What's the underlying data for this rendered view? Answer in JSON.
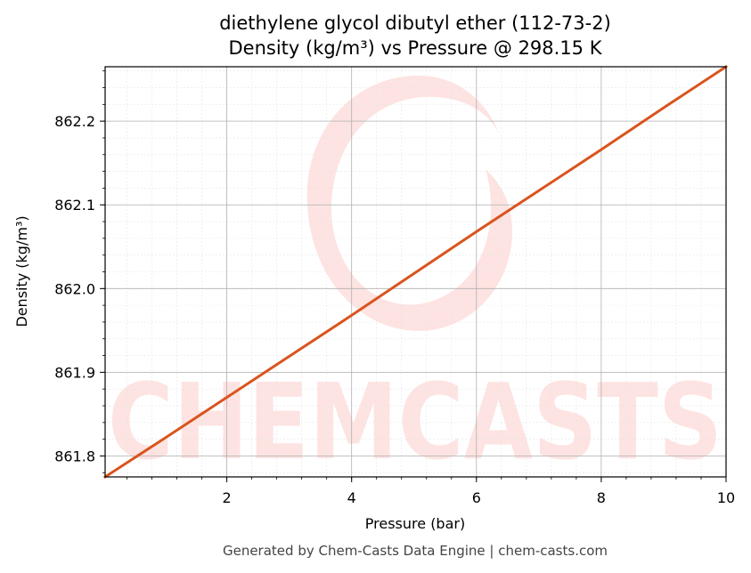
{
  "chart_data": {
    "type": "line",
    "title_line1": "diethylene glycol dibutyl ether (112-73-2)",
    "title_line2": "Density (kg/m³) vs Pressure @ 298.15 K",
    "xlabel": "Pressure (bar)",
    "ylabel": "Density (kg/m³)",
    "xlim": [
      0.05,
      10
    ],
    "ylim": [
      861.775,
      862.265
    ],
    "x_ticks": [
      2,
      4,
      6,
      8,
      10
    ],
    "x_tick_labels": [
      "2",
      "4",
      "6",
      "8",
      "10"
    ],
    "y_ticks": [
      861.8,
      861.9,
      862.0,
      862.1,
      862.2
    ],
    "y_tick_labels": [
      "861.8",
      "861.9",
      "862.0",
      "862.1",
      "862.2"
    ],
    "grid": true,
    "series": [
      {
        "color": "#d9541e",
        "x": [
          0.05,
          1,
          2,
          3,
          4,
          5,
          6,
          7,
          8,
          9,
          10
        ],
        "y": [
          861.775,
          861.821,
          861.87,
          861.919,
          861.968,
          862.018,
          862.068,
          862.117,
          862.166,
          862.216,
          862.265
        ]
      }
    ]
  },
  "watermark": {
    "text": "CHEMCASTS",
    "color": "#fde3e1"
  },
  "footer": "Generated by Chem-Casts Data Engine | chem-casts.com"
}
